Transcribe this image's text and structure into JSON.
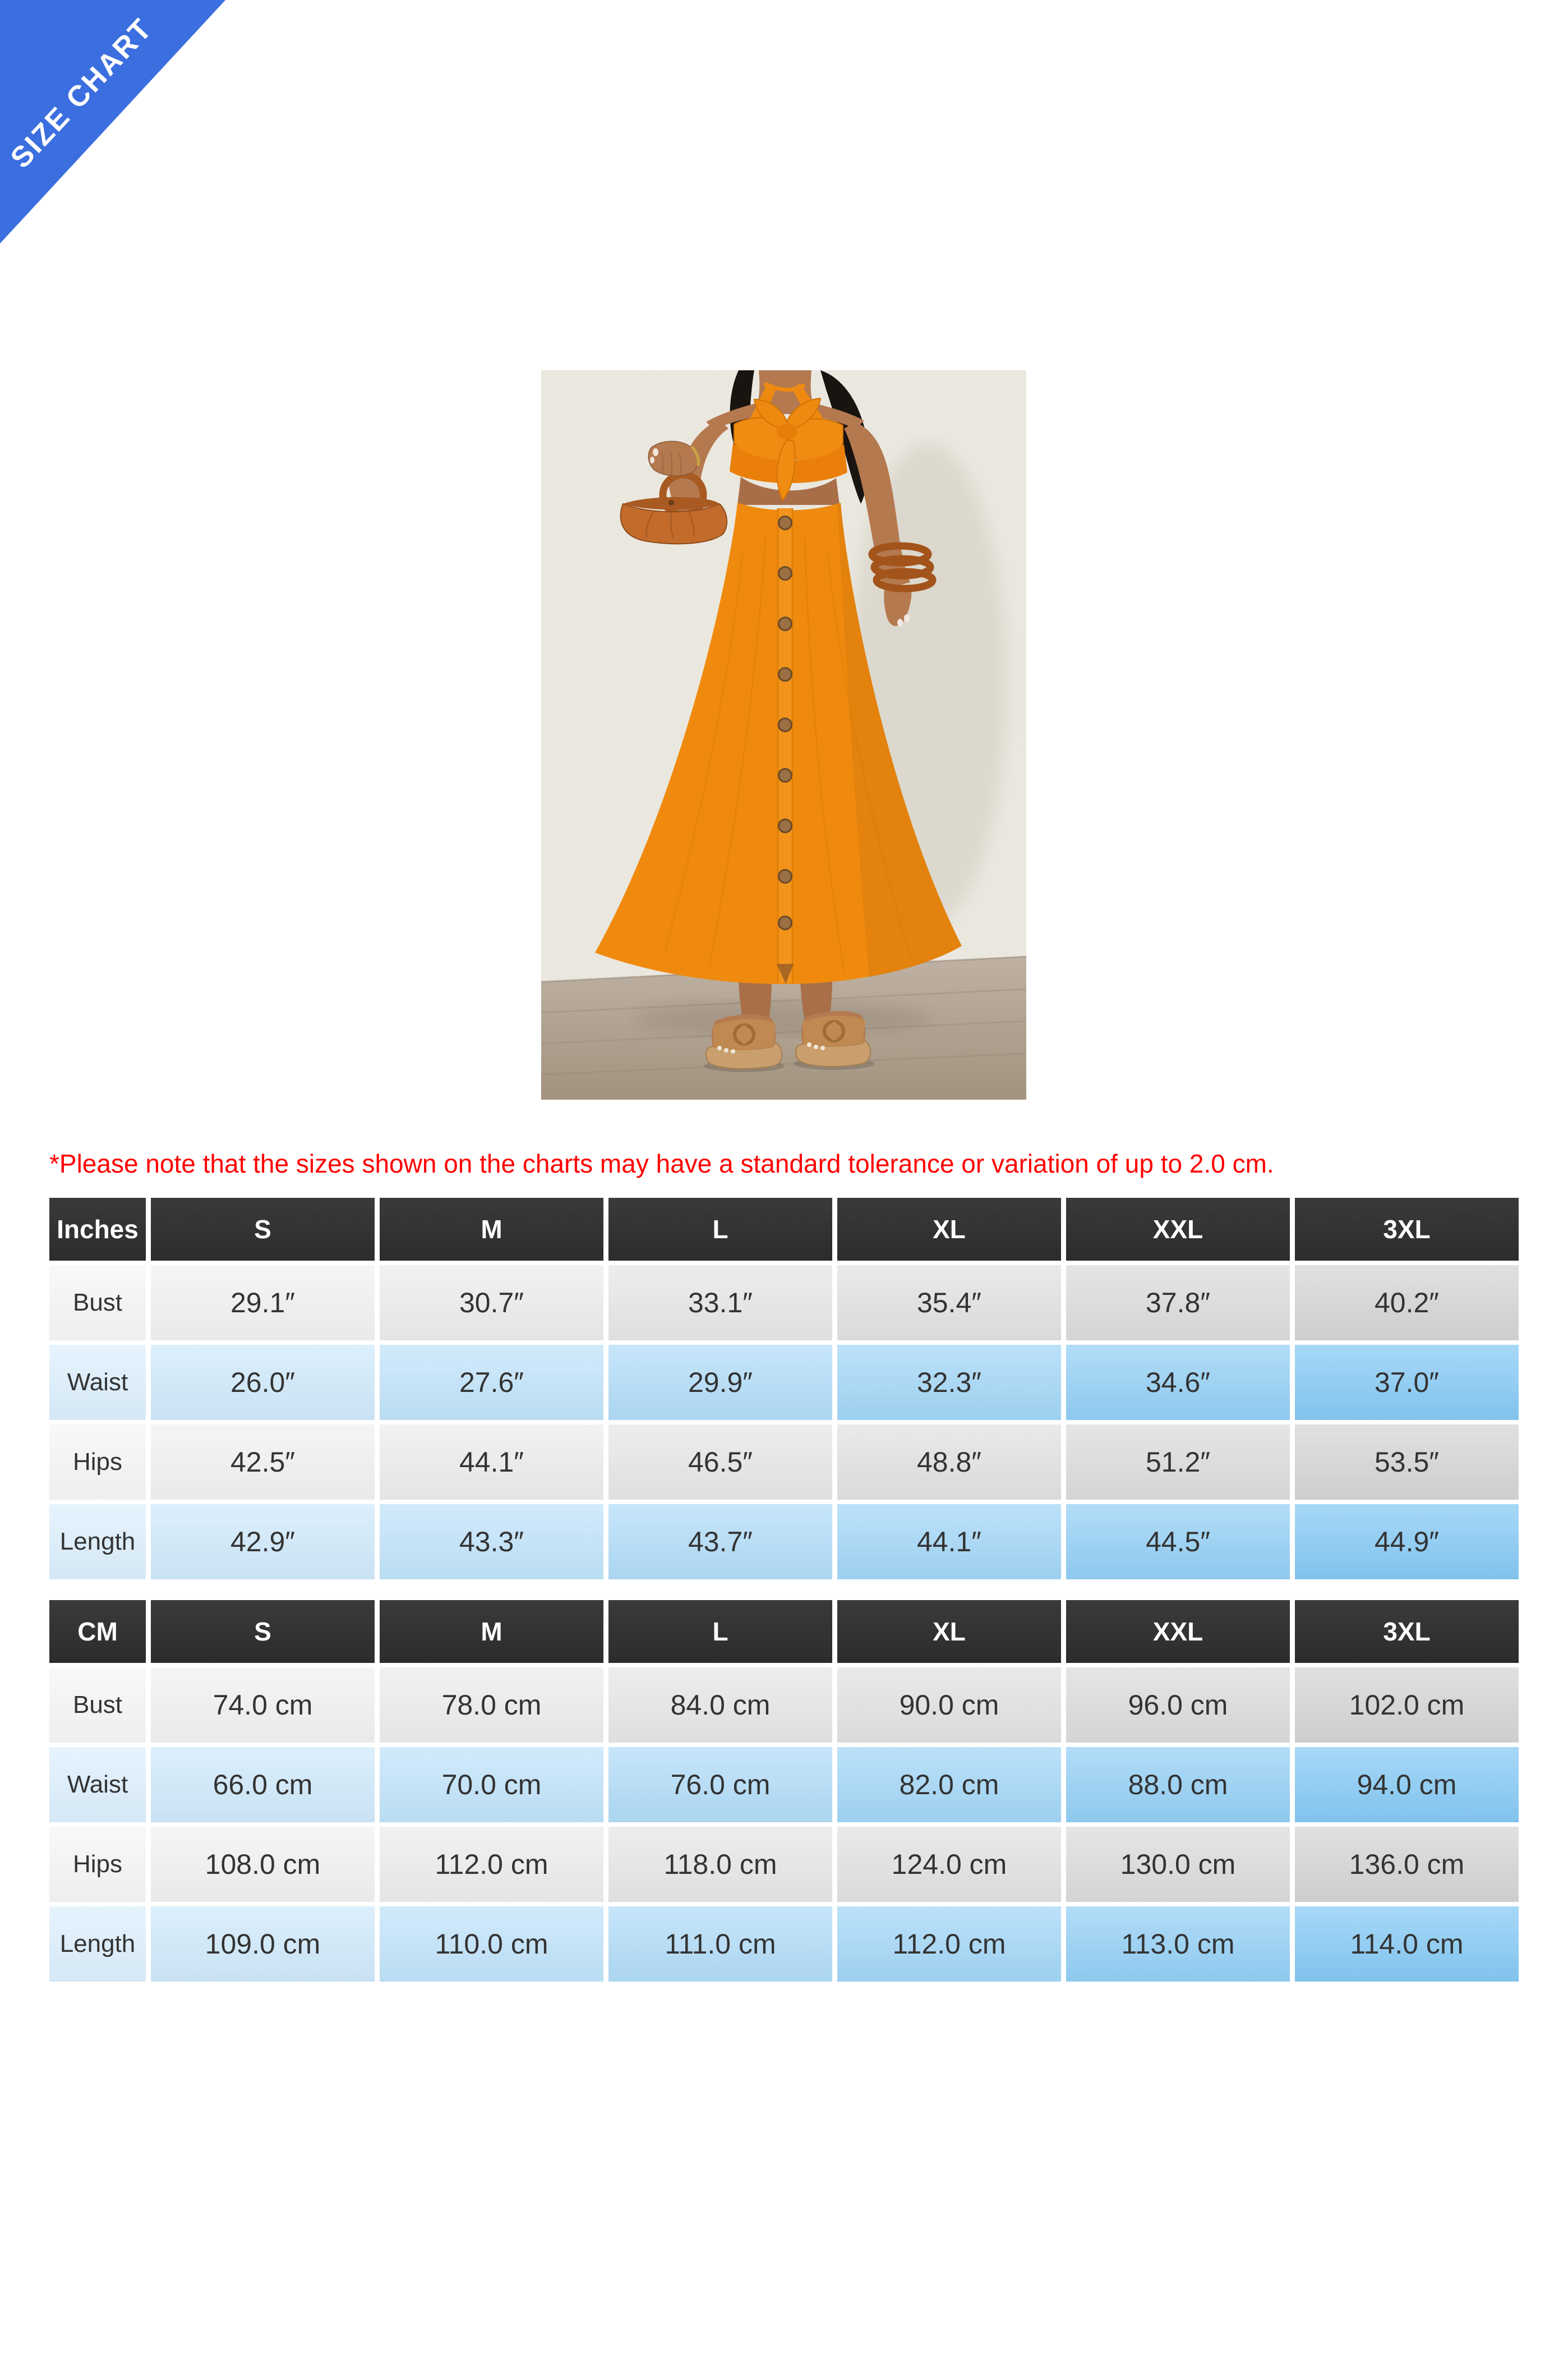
{
  "ribbon": {
    "label": "SIZE CHART"
  },
  "photo": {
    "description": "Model wearing an orange halter-neck button-front midi dress with twisted petal bodice and midriff cutout, holding an orange leather pouch handbag with round ring handle, amber bangle stack on left wrist, tan slide sandals, standing against a speckled beige stucco wall on gray wood flooring."
  },
  "note": {
    "text": "*Please note that the sizes shown on the charts may have a standard tolerance or variation of up to 2.0 cm."
  },
  "tables": [
    {
      "unit_label": "Inches",
      "columns": [
        "S",
        "M",
        "L",
        "XL",
        "XXL",
        "3XL"
      ],
      "rows": [
        {
          "label": "Bust",
          "values": [
            "29.1″",
            "30.7″",
            "33.1″",
            "35.4″",
            "37.8″",
            "40.2″"
          ]
        },
        {
          "label": "Waist",
          "values": [
            "26.0″",
            "27.6″",
            "29.9″",
            "32.3″",
            "34.6″",
            "37.0″"
          ]
        },
        {
          "label": "Hips",
          "values": [
            "42.5″",
            "44.1″",
            "46.5″",
            "48.8″",
            "51.2″",
            "53.5″"
          ]
        },
        {
          "label": "Length",
          "values": [
            "42.9″",
            "43.3″",
            "43.7″",
            "44.1″",
            "44.5″",
            "44.9″"
          ]
        }
      ]
    },
    {
      "unit_label": "CM",
      "columns": [
        "S",
        "M",
        "L",
        "XL",
        "XXL",
        "3XL"
      ],
      "rows": [
        {
          "label": "Bust",
          "values": [
            "74.0 cm",
            "78.0 cm",
            "84.0 cm",
            "90.0 cm",
            "96.0 cm",
            "102.0 cm"
          ]
        },
        {
          "label": "Waist",
          "values": [
            "66.0 cm",
            "70.0 cm",
            "76.0 cm",
            "82.0 cm",
            "88.0 cm",
            "94.0 cm"
          ]
        },
        {
          "label": "Hips",
          "values": [
            "108.0 cm",
            "112.0 cm",
            "118.0 cm",
            "124.0 cm",
            "130.0 cm",
            "136.0 cm"
          ]
        },
        {
          "label": "Length",
          "values": [
            "109.0 cm",
            "110.0 cm",
            "111.0 cm",
            "112.0 cm",
            "113.0 cm",
            "114.0 cm"
          ]
        }
      ]
    }
  ],
  "colors": {
    "ribbon_blue": "#3b6edf",
    "note_red": "#ff0000",
    "header_dark": "#313131",
    "row_gray": "#d4d4d4",
    "row_blue": "#85c9f4",
    "dress_orange": "#f08a0e"
  }
}
